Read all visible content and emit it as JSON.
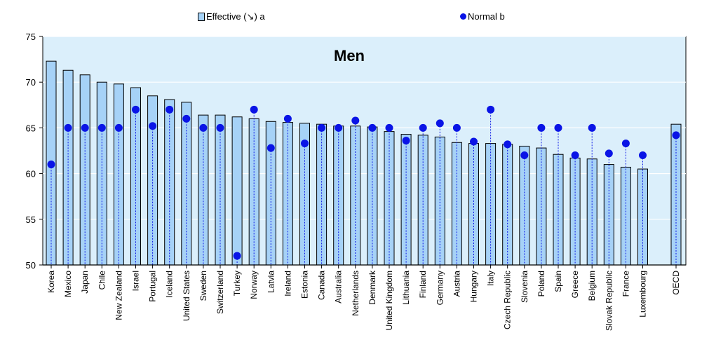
{
  "legend": {
    "effective_label": "Effective (↘) a",
    "normal_label": "Normal b"
  },
  "colors": {
    "plot_bg": "#dbeffb",
    "bar_fill": "#a6d2f7",
    "bar_stroke": "#000000",
    "dot": "#0a14e6",
    "grid": "#ffffff"
  },
  "chart_data": {
    "type": "bar",
    "title": "Men",
    "ylim": [
      50,
      75
    ],
    "yticks": [
      50,
      55,
      60,
      65,
      70,
      75
    ],
    "grid": true,
    "legend_position": "top",
    "categories": [
      "Korea",
      "Mexico",
      "Japan",
      "Chile",
      "New Zealand",
      "Israel",
      "Portugal",
      "Iceland",
      "United States",
      "Sweden",
      "Switzerland",
      "Turkey",
      "Norway",
      "Latvia",
      "Ireland",
      "Estonia",
      "Canada",
      "Australia",
      "Netherlands",
      "Denmark",
      "United Kingdom",
      "Lithuania",
      "Finland",
      "Germany",
      "Austria",
      "Hungary",
      "Italy",
      "Czech Republic",
      "Slovenia",
      "Poland",
      "Spain",
      "Greece",
      "Belgium",
      "Slovak Republic",
      "France",
      "Luxembourg",
      "OECD"
    ],
    "series": [
      {
        "name": "Effective (↘) a",
        "type": "bar",
        "values": [
          72.3,
          71.3,
          70.8,
          70.0,
          69.8,
          69.4,
          68.5,
          68.1,
          67.8,
          66.4,
          66.4,
          66.2,
          66.0,
          65.7,
          65.6,
          65.5,
          65.4,
          65.2,
          65.2,
          65.1,
          64.6,
          64.3,
          64.2,
          64.0,
          63.4,
          63.3,
          63.3,
          63.2,
          63.0,
          62.8,
          62.1,
          61.7,
          61.6,
          61.0,
          60.7,
          60.5,
          65.4
        ]
      },
      {
        "name": "Normal b",
        "type": "scatter",
        "values": [
          61.0,
          65.0,
          65.0,
          65.0,
          65.0,
          67.0,
          65.2,
          67.0,
          66.0,
          65.0,
          65.0,
          51.0,
          67.0,
          62.8,
          66.0,
          63.3,
          65.0,
          65.0,
          65.8,
          65.0,
          65.0,
          63.6,
          65.0,
          65.5,
          65.0,
          63.5,
          67.0,
          63.2,
          62.0,
          65.0,
          65.0,
          62.0,
          65.0,
          62.2,
          63.3,
          62.0,
          64.2
        ]
      }
    ]
  }
}
